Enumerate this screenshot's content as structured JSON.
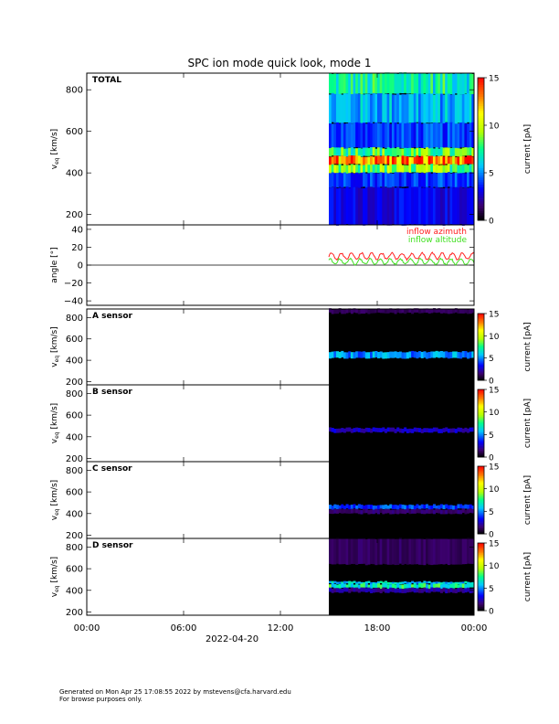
{
  "chart_data": {
    "title": "SPC ion mode quick look, mode 1",
    "type": "heatmap",
    "date_label": "2022-04-20",
    "x_ticks": [
      "00:00",
      "06:00",
      "12:00",
      "18:00",
      "00:00"
    ],
    "x_tick_hours": [
      0,
      6,
      12,
      18,
      24
    ],
    "x_range_hours": [
      0,
      24
    ],
    "data_start_hours": 15.0,
    "panels": [
      {
        "type": "heatmap",
        "label": "TOTAL",
        "ylabel_main": "v",
        "ylabel_sub": "eq",
        "ylabel_rest": " [km/s]",
        "ylim": [
          150,
          880
        ],
        "yticks": [
          "200",
          "400",
          "600",
          "800"
        ],
        "ytick_values": [
          200,
          400,
          600,
          800
        ],
        "bands": [
          {
            "from": 780,
            "to": 880,
            "level": 7
          },
          {
            "from": 640,
            "to": 780,
            "level": 5.5
          },
          {
            "from": 520,
            "to": 640,
            "level": 4
          },
          {
            "from": 480,
            "to": 520,
            "level": 8
          },
          {
            "from": 440,
            "to": 480,
            "level": 13
          },
          {
            "from": 400,
            "to": 440,
            "level": 8.5
          },
          {
            "from": 330,
            "to": 400,
            "level": 4
          },
          {
            "from": 150,
            "to": 330,
            "level": 3
          }
        ],
        "colorbar": {
          "label": "current [pA]",
          "range": [
            0,
            15
          ],
          "ticks": [
            "0",
            "5",
            "10",
            "15"
          ],
          "tick_values": [
            0,
            5,
            10,
            15
          ]
        }
      },
      {
        "type": "line",
        "ylabel": "angle [°]",
        "ylim": [
          -45,
          45
        ],
        "yticks": [
          "40",
          "20",
          "0",
          "−20",
          "−40"
        ],
        "ytick_values": [
          40,
          20,
          0,
          -20,
          -40
        ],
        "series": [
          {
            "name": "inflow azimuth",
            "color": "#ff2020",
            "mean": 10,
            "amp": 3.5
          },
          {
            "name": "inflow altitude",
            "color": "#40e020",
            "mean": 4,
            "amp": 3.0
          }
        ]
      },
      {
        "type": "heatmap",
        "label": "A sensor",
        "ylabel_main": "v",
        "ylabel_sub": "eq",
        "ylabel_rest": " [km/s]",
        "ylim": [
          170,
          880
        ],
        "yticks": [
          "200",
          "400",
          "600",
          "800"
        ],
        "ytick_values": [
          200,
          400,
          600,
          800
        ],
        "bands": [
          {
            "from": 840,
            "to": 880,
            "level": 1.2
          },
          {
            "from": 420,
            "to": 480,
            "level": 5
          }
        ],
        "colorbar": {
          "label": "current [pA]",
          "range": [
            0,
            15
          ],
          "ticks": [
            "0",
            "5",
            "10",
            "15"
          ],
          "tick_values": [
            0,
            5,
            10,
            15
          ]
        }
      },
      {
        "type": "heatmap",
        "label": "B sensor",
        "ylabel_main": "v",
        "ylabel_sub": "eq",
        "ylabel_rest": " [km/s]",
        "ylim": [
          170,
          880
        ],
        "yticks": [
          "200",
          "400",
          "600",
          "800"
        ],
        "ytick_values": [
          200,
          400,
          600,
          800
        ],
        "bands": [
          {
            "from": 440,
            "to": 480,
            "level": 2.5
          }
        ],
        "colorbar": {
          "label": "current [pA]",
          "range": [
            0,
            15
          ],
          "ticks": [
            "0",
            "5",
            "10",
            "15"
          ],
          "tick_values": [
            0,
            5,
            10,
            15
          ]
        }
      },
      {
        "type": "heatmap",
        "label": "C sensor",
        "ylabel_main": "v",
        "ylabel_sub": "eq",
        "ylabel_rest": " [km/s]",
        "ylim": [
          170,
          880
        ],
        "yticks": [
          "200",
          "400",
          "600",
          "800"
        ],
        "ytick_values": [
          200,
          400,
          600,
          800
        ],
        "bands": [
          {
            "from": 440,
            "to": 480,
            "level": 4
          },
          {
            "from": 400,
            "to": 440,
            "level": 1.5
          }
        ],
        "colorbar": {
          "label": "current [pA]",
          "range": [
            0,
            15
          ],
          "ticks": [
            "0",
            "5",
            "10",
            "15"
          ],
          "tick_values": [
            0,
            5,
            10,
            15
          ]
        }
      },
      {
        "type": "heatmap",
        "label": "D sensor",
        "ylabel_main": "v",
        "ylabel_sub": "eq",
        "ylabel_rest": " [km/s]",
        "ylim": [
          170,
          880
        ],
        "yticks": [
          "200",
          "400",
          "600",
          "800"
        ],
        "ytick_values": [
          200,
          400,
          600,
          800
        ],
        "bands": [
          {
            "from": 640,
            "to": 880,
            "level": 1.3
          },
          {
            "from": 460,
            "to": 480,
            "level": 6
          },
          {
            "from": 420,
            "to": 460,
            "level": 7
          },
          {
            "from": 380,
            "to": 420,
            "level": 2
          }
        ],
        "colorbar": {
          "label": "current [pA]",
          "range": [
            0,
            15
          ],
          "ticks": [
            "0",
            "5",
            "10",
            "15"
          ],
          "tick_values": [
            0,
            5,
            10,
            15
          ]
        }
      }
    ]
  },
  "footer": {
    "line1": "Generated on Mon Apr 25 17:08:55 2022 by mstevens@cfa.harvard.edu",
    "line2": "For browse purposes only."
  }
}
